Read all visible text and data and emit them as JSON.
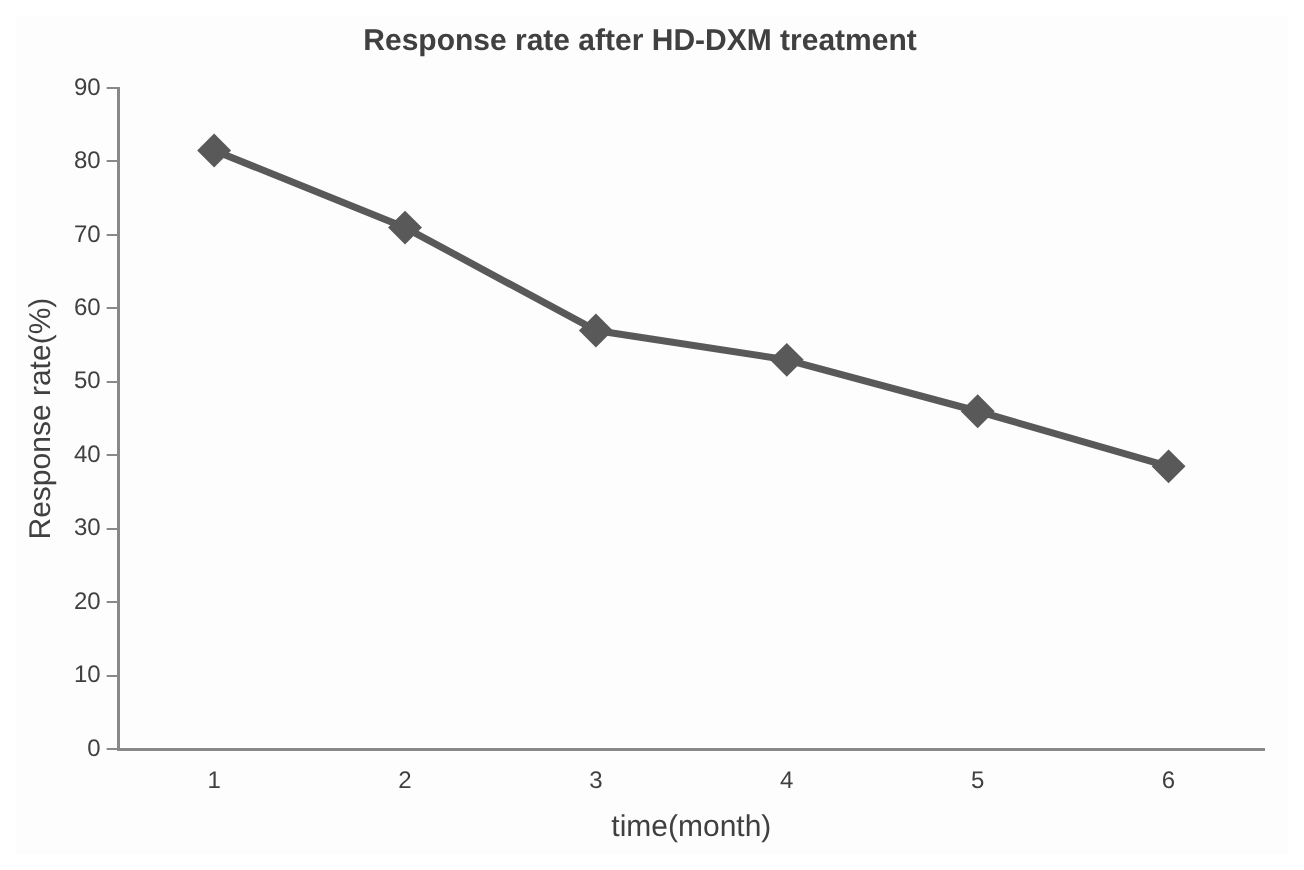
{
  "chart_data": {
    "type": "line",
    "title": "Response rate after HD-DXM treatment",
    "xlabel": "time(month)",
    "ylabel": "Response rate(%)",
    "categories": [
      "1",
      "2",
      "3",
      "4",
      "5",
      "6"
    ],
    "series": [
      {
        "color": "#595959",
        "values": [
          81.5,
          71,
          57,
          53,
          46,
          38.5
        ]
      }
    ],
    "ylim": [
      0,
      90
    ],
    "yticks": [
      0,
      10,
      20,
      30,
      40,
      50,
      60,
      70,
      80,
      90
    ],
    "grid": false,
    "legend": false,
    "marker": "diamond",
    "line_style": "solid"
  }
}
